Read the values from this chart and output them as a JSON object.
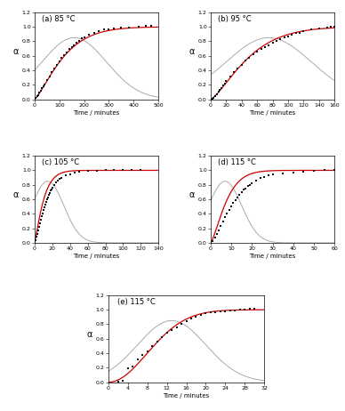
{
  "subplots": [
    {
      "label": "(a) 85 °C",
      "xlim": [
        0,
        500
      ],
      "xticks": [
        0,
        100,
        200,
        300,
        400,
        500
      ],
      "ylim": [
        0.0,
        1.2
      ],
      "yticks": [
        0.0,
        0.2,
        0.4,
        0.6,
        0.8,
        1.0,
        1.2
      ],
      "growth_params": {
        "kb": 0.0018,
        "n": 1.3
      },
      "nuc_params": {
        "peak": 160,
        "sigma": 130
      },
      "data_points": [
        [
          5,
          0.02
        ],
        [
          10,
          0.04
        ],
        [
          15,
          0.06
        ],
        [
          20,
          0.09
        ],
        [
          25,
          0.12
        ],
        [
          30,
          0.15
        ],
        [
          35,
          0.18
        ],
        [
          40,
          0.21
        ],
        [
          50,
          0.26
        ],
        [
          60,
          0.32
        ],
        [
          70,
          0.37
        ],
        [
          80,
          0.42
        ],
        [
          90,
          0.47
        ],
        [
          100,
          0.52
        ],
        [
          110,
          0.57
        ],
        [
          120,
          0.61
        ],
        [
          130,
          0.65
        ],
        [
          140,
          0.69
        ],
        [
          150,
          0.72
        ],
        [
          160,
          0.75
        ],
        [
          170,
          0.78
        ],
        [
          180,
          0.81
        ],
        [
          190,
          0.84
        ],
        [
          200,
          0.86
        ],
        [
          220,
          0.89
        ],
        [
          240,
          0.92
        ],
        [
          260,
          0.94
        ],
        [
          280,
          0.96
        ],
        [
          300,
          0.97
        ],
        [
          320,
          0.98
        ],
        [
          350,
          0.99
        ],
        [
          380,
          0.99
        ],
        [
          420,
          1.0
        ],
        [
          450,
          1.01
        ],
        [
          470,
          1.01
        ]
      ]
    },
    {
      "label": "(b) 95 °C",
      "xlim": [
        0,
        160
      ],
      "xticks": [
        0,
        20,
        40,
        60,
        80,
        100,
        120,
        140,
        160
      ],
      "ylim": [
        0.0,
        1.2
      ],
      "yticks": [
        0.0,
        0.2,
        0.4,
        0.6,
        0.8,
        1.0,
        1.2
      ],
      "growth_params": {
        "kb": 0.0045,
        "n": 1.35
      },
      "nuc_params": {
        "peak": 75,
        "sigma": 55
      },
      "data_points": [
        [
          2,
          0.01
        ],
        [
          4,
          0.02
        ],
        [
          6,
          0.04
        ],
        [
          8,
          0.07
        ],
        [
          10,
          0.1
        ],
        [
          12,
          0.13
        ],
        [
          14,
          0.16
        ],
        [
          16,
          0.19
        ],
        [
          18,
          0.22
        ],
        [
          20,
          0.25
        ],
        [
          25,
          0.31
        ],
        [
          30,
          0.37
        ],
        [
          35,
          0.43
        ],
        [
          40,
          0.48
        ],
        [
          45,
          0.53
        ],
        [
          50,
          0.57
        ],
        [
          55,
          0.62
        ],
        [
          60,
          0.66
        ],
        [
          65,
          0.69
        ],
        [
          70,
          0.72
        ],
        [
          75,
          0.75
        ],
        [
          80,
          0.78
        ],
        [
          85,
          0.81
        ],
        [
          90,
          0.83
        ],
        [
          95,
          0.85
        ],
        [
          100,
          0.87
        ],
        [
          105,
          0.89
        ],
        [
          110,
          0.91
        ],
        [
          115,
          0.92
        ],
        [
          120,
          0.94
        ],
        [
          130,
          0.96
        ],
        [
          140,
          0.98
        ],
        [
          150,
          0.99
        ],
        [
          155,
          1.0
        ],
        [
          160,
          1.0
        ]
      ]
    },
    {
      "label": "(c) 105 °C",
      "xlim": [
        0,
        140
      ],
      "xticks": [
        0,
        20,
        40,
        60,
        80,
        100,
        120,
        140
      ],
      "ylim": [
        0.0,
        1.2
      ],
      "yticks": [
        0.0,
        0.2,
        0.4,
        0.6,
        0.8,
        1.0,
        1.2
      ],
      "growth_params": {
        "kb": 0.055,
        "n": 1.2
      },
      "nuc_params": {
        "peak": 15,
        "sigma": 18
      },
      "data_points": [
        [
          1,
          0.04
        ],
        [
          2,
          0.08
        ],
        [
          3,
          0.12
        ],
        [
          4,
          0.17
        ],
        [
          5,
          0.22
        ],
        [
          6,
          0.27
        ],
        [
          7,
          0.32
        ],
        [
          8,
          0.37
        ],
        [
          9,
          0.41
        ],
        [
          10,
          0.45
        ],
        [
          11,
          0.49
        ],
        [
          12,
          0.53
        ],
        [
          13,
          0.57
        ],
        [
          14,
          0.6
        ],
        [
          15,
          0.63
        ],
        [
          16,
          0.66
        ],
        [
          17,
          0.69
        ],
        [
          18,
          0.72
        ],
        [
          19,
          0.74
        ],
        [
          20,
          0.76
        ],
        [
          22,
          0.8
        ],
        [
          24,
          0.83
        ],
        [
          26,
          0.86
        ],
        [
          28,
          0.88
        ],
        [
          30,
          0.9
        ],
        [
          35,
          0.93
        ],
        [
          40,
          0.95
        ],
        [
          45,
          0.97
        ],
        [
          50,
          0.98
        ],
        [
          60,
          0.99
        ],
        [
          70,
          0.99
        ],
        [
          80,
          1.0
        ],
        [
          90,
          1.0
        ],
        [
          100,
          1.01
        ],
        [
          110,
          1.01
        ],
        [
          120,
          1.01
        ]
      ]
    },
    {
      "label": "(d) 115 °C",
      "xlim": [
        0,
        60
      ],
      "xticks": [
        0,
        10,
        20,
        30,
        40,
        50,
        60
      ],
      "ylim": [
        0.0,
        1.2
      ],
      "yticks": [
        0.0,
        0.2,
        0.4,
        0.6,
        0.8,
        1.0,
        1.2
      ],
      "growth_params": {
        "kb": 0.055,
        "n": 1.35
      },
      "nuc_params": {
        "peak": 7,
        "sigma": 8
      },
      "data_points": [
        [
          1,
          0.03
        ],
        [
          2,
          0.07
        ],
        [
          3,
          0.12
        ],
        [
          4,
          0.17
        ],
        [
          5,
          0.23
        ],
        [
          6,
          0.29
        ],
        [
          7,
          0.35
        ],
        [
          8,
          0.4
        ],
        [
          9,
          0.45
        ],
        [
          10,
          0.5
        ],
        [
          11,
          0.55
        ],
        [
          12,
          0.59
        ],
        [
          13,
          0.63
        ],
        [
          14,
          0.66
        ],
        [
          15,
          0.7
        ],
        [
          16,
          0.73
        ],
        [
          17,
          0.75
        ],
        [
          18,
          0.78
        ],
        [
          19,
          0.8
        ],
        [
          20,
          0.82
        ],
        [
          22,
          0.86
        ],
        [
          24,
          0.89
        ],
        [
          26,
          0.91
        ],
        [
          28,
          0.93
        ],
        [
          30,
          0.94
        ],
        [
          35,
          0.96
        ],
        [
          40,
          0.97
        ],
        [
          45,
          0.98
        ],
        [
          50,
          0.99
        ],
        [
          55,
          1.0
        ],
        [
          60,
          1.01
        ]
      ]
    },
    {
      "label": "(e) 115 °C",
      "xlim": [
        0,
        32
      ],
      "xticks": [
        0,
        4,
        8,
        12,
        16,
        20,
        24,
        28,
        32
      ],
      "ylim": [
        0.0,
        1.2
      ],
      "yticks": [
        0.0,
        0.2,
        0.4,
        0.6,
        0.8,
        1.0,
        1.2
      ],
      "growth_params": {
        "kb": 0.008,
        "n": 2.0
      },
      "nuc_params": {
        "peak": 13,
        "sigma": 7
      },
      "data_points": [
        [
          2,
          0.01
        ],
        [
          3,
          0.02
        ],
        [
          4,
          0.19
        ],
        [
          5,
          0.22
        ],
        [
          6,
          0.31
        ],
        [
          7,
          0.38
        ],
        [
          8,
          0.43
        ],
        [
          9,
          0.5
        ],
        [
          10,
          0.56
        ],
        [
          11,
          0.62
        ],
        [
          12,
          0.68
        ],
        [
          13,
          0.72
        ],
        [
          14,
          0.76
        ],
        [
          15,
          0.8
        ],
        [
          16,
          0.84
        ],
        [
          17,
          0.88
        ],
        [
          18,
          0.91
        ],
        [
          19,
          0.93
        ],
        [
          20,
          0.95
        ],
        [
          21,
          0.96
        ],
        [
          22,
          0.97
        ],
        [
          23,
          0.98
        ],
        [
          24,
          0.98
        ],
        [
          25,
          0.99
        ],
        [
          26,
          0.99
        ],
        [
          27,
          1.0
        ],
        [
          28,
          1.0
        ],
        [
          29,
          1.01
        ],
        [
          30,
          1.01
        ]
      ]
    }
  ],
  "red_color": "#cc0000",
  "grey_color": "#aaaaaa",
  "dot_color": "#111111",
  "ylabel": "α",
  "xlabel": "Time / minutes",
  "bg_color": "#ffffff",
  "ytick_labels": [
    "0.0",
    "0.2",
    "0.4",
    "0.6",
    "0.8",
    "1.0",
    "1.2"
  ]
}
